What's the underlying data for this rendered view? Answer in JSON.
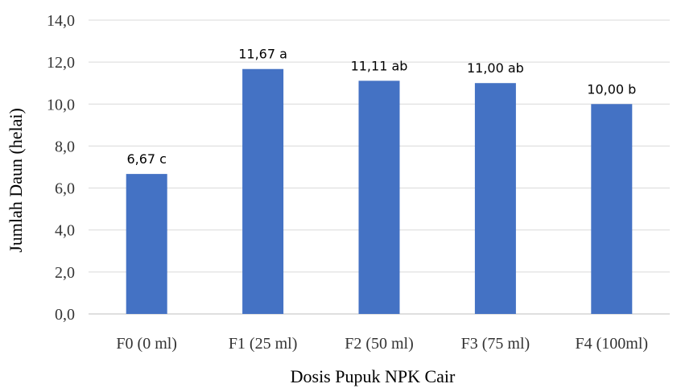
{
  "chart_data": {
    "type": "bar",
    "categories": [
      "F0 (0 ml)",
      "F1 (25 ml)",
      "F2 (50 ml)",
      "F3 (75 ml)",
      "F4 (100ml)"
    ],
    "values": [
      6.67,
      11.67,
      11.11,
      11.0,
      10.0
    ],
    "data_labels": [
      "6,67 c",
      "11,67 a",
      "11,11 ab",
      "11,00 ab",
      "10,00 b"
    ],
    "title": "",
    "xlabel": "Dosis Pupuk NPK Cair",
    "ylabel": "Jumlah Daun (helai)",
    "ylim": [
      0,
      14
    ],
    "yticks": [
      0,
      2,
      4,
      6,
      8,
      10,
      12,
      14
    ],
    "ytick_labels": [
      "0,0",
      "2,0",
      "4,0",
      "6,0",
      "8,0",
      "10,0",
      "12,0",
      "14,0"
    ],
    "grid": true,
    "legend": "none",
    "bar_color": "#4472c4"
  }
}
